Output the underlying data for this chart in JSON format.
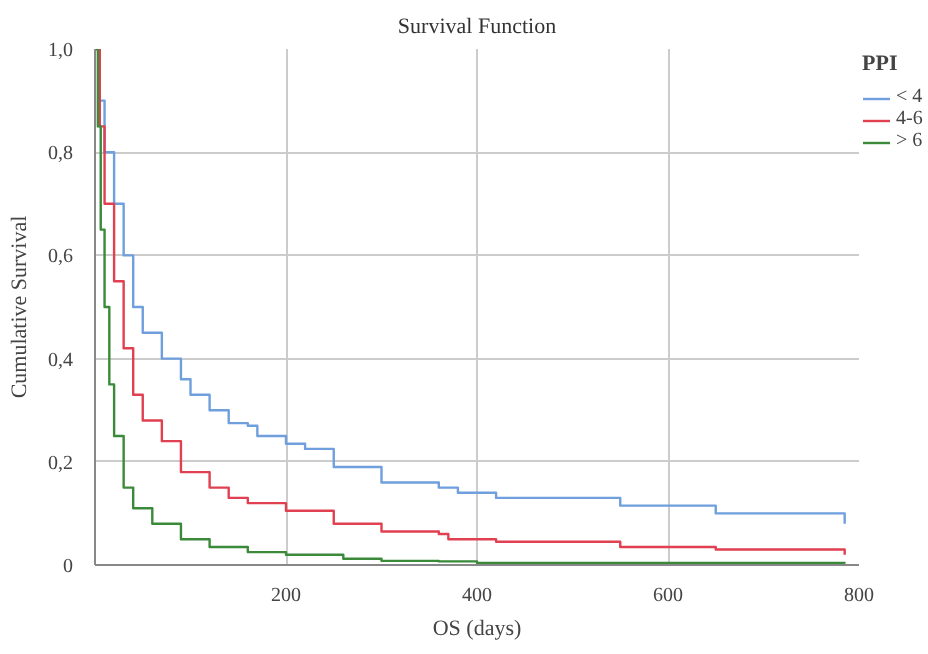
{
  "chart_data": {
    "type": "step",
    "title": "Survival Function",
    "xlabel": "OS (days)",
    "ylabel": "Cumulative Survival",
    "legend_title": "PPI",
    "legend": "top right",
    "grid": true,
    "xlim": [
      0,
      800
    ],
    "xticks": [
      200,
      400,
      600,
      800
    ],
    "ylim": [
      0,
      1
    ],
    "yticks": [
      {
        "value": 0,
        "label": "0"
      },
      {
        "value": 0.2,
        "label": "0,2"
      },
      {
        "value": 0.4,
        "label": "0,4"
      },
      {
        "value": 0.6,
        "label": "0,6"
      },
      {
        "value": 0.8,
        "label": "0,8"
      },
      {
        "value": 1,
        "label": "1,0"
      }
    ],
    "series": [
      {
        "name": "< 4",
        "color": "#6f9fdc",
        "x": [
          0,
          5,
          10,
          20,
          30,
          40,
          50,
          70,
          90,
          100,
          120,
          140,
          160,
          170,
          200,
          220,
          250,
          300,
          360,
          380,
          420,
          540,
          550,
          645,
          650,
          785,
          785
        ],
        "values": [
          1,
          0.9,
          0.8,
          0.7,
          0.6,
          0.5,
          0.45,
          0.4,
          0.36,
          0.33,
          0.3,
          0.275,
          0.27,
          0.25,
          0.235,
          0.225,
          0.19,
          0.16,
          0.15,
          0.14,
          0.13,
          0.13,
          0.115,
          0.115,
          0.1,
          0.1,
          0.08
        ]
      },
      {
        "name": "4-6",
        "color": "#e04050",
        "x": [
          0,
          5,
          10,
          20,
          30,
          40,
          50,
          70,
          90,
          120,
          140,
          160,
          200,
          250,
          300,
          360,
          370,
          420,
          540,
          550,
          645,
          650,
          785,
          785
        ],
        "values": [
          1,
          0.85,
          0.7,
          0.55,
          0.42,
          0.33,
          0.28,
          0.24,
          0.18,
          0.15,
          0.13,
          0.12,
          0.105,
          0.08,
          0.065,
          0.06,
          0.05,
          0.045,
          0.045,
          0.035,
          0.035,
          0.03,
          0.03,
          0.02
        ]
      },
      {
        "name": "> 6",
        "color": "#3a8a3a",
        "x": [
          0,
          3,
          6,
          10,
          15,
          20,
          30,
          40,
          60,
          90,
          120,
          160,
          200,
          260,
          300,
          360,
          400,
          785
        ],
        "values": [
          1,
          0.85,
          0.65,
          0.5,
          0.35,
          0.25,
          0.15,
          0.11,
          0.08,
          0.05,
          0.035,
          0.025,
          0.02,
          0.012,
          0.008,
          0.007,
          0.004,
          0.003
        ]
      }
    ]
  }
}
